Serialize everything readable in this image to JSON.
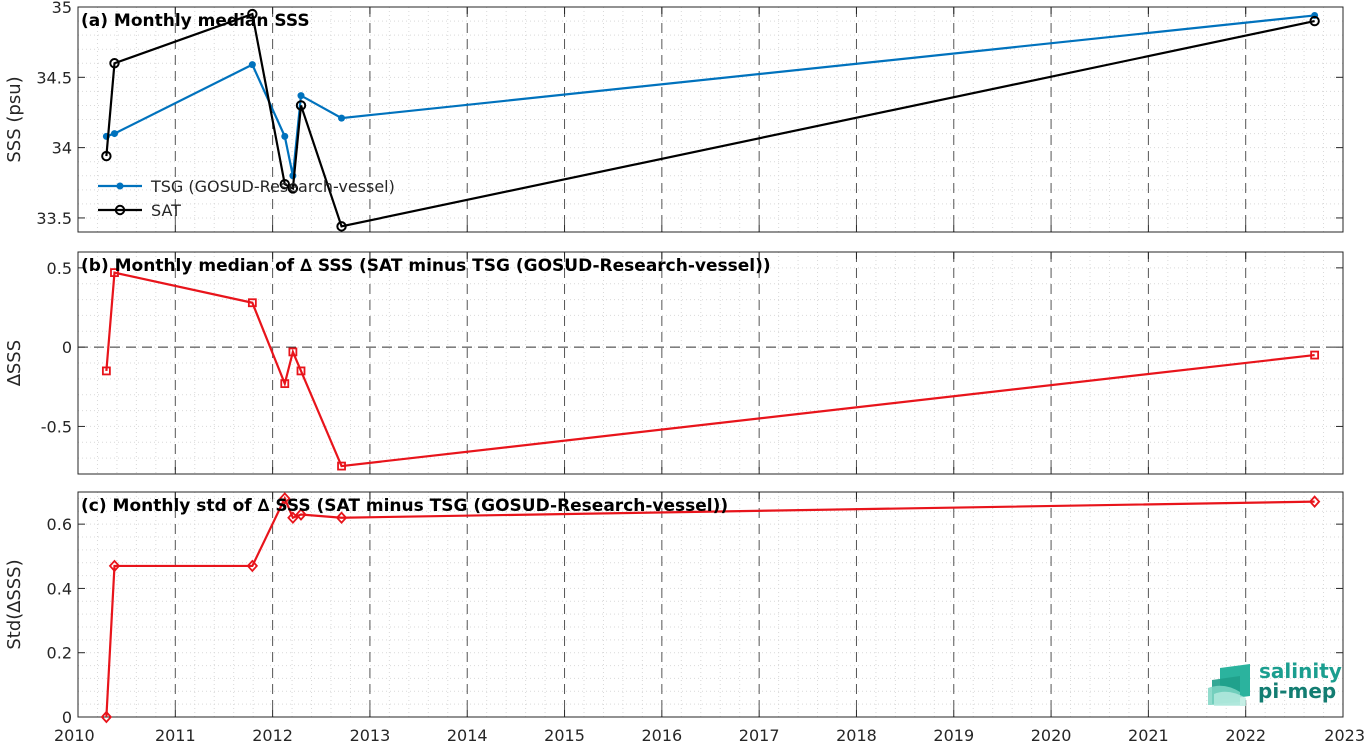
{
  "chart_data": [
    {
      "type": "line",
      "title": "(a) Monthly median SSS",
      "xlabel": "",
      "ylabel": "SSS (psu)",
      "xlim": [
        "2010",
        "2023"
      ],
      "ylim": [
        33.4,
        35
      ],
      "yticks": [
        "33.5",
        "34",
        "34.5",
        "35"
      ],
      "grid": true,
      "legend_position": "bottom-left",
      "series": [
        {
          "name": "TSG (GOSUD-Research-vessel)",
          "color": "#0072bd",
          "marker": "dot",
          "x": [
            "2010-04",
            "2010-05",
            "2011-10",
            "2012-02",
            "2012-03",
            "2012-04",
            "2012-09",
            "2022-09"
          ],
          "y": [
            34.08,
            34.1,
            34.59,
            34.08,
            33.8,
            34.37,
            34.21,
            34.94
          ]
        },
        {
          "name": "SAT",
          "color": "#000000",
          "marker": "circle",
          "x": [
            "2010-04",
            "2010-05",
            "2011-10",
            "2012-02",
            "2012-03",
            "2012-04",
            "2012-09",
            "2022-09"
          ],
          "y": [
            33.94,
            34.6,
            34.95,
            33.74,
            33.71,
            34.3,
            33.44,
            34.9
          ]
        }
      ]
    },
    {
      "type": "line",
      "title": "(b) Monthly median of ∆ SSS (SAT minus TSG (GOSUD-Research-vessel))",
      "xlabel": "",
      "ylabel": "∆SSS",
      "xlim": [
        "2010",
        "2023"
      ],
      "ylim": [
        -0.8,
        0.6
      ],
      "yticks": [
        "-0.5",
        "0",
        "0.5"
      ],
      "grid": true,
      "zero_line": true,
      "series": [
        {
          "color": "#e8141b",
          "marker": "square",
          "x": [
            "2010-04",
            "2010-05",
            "2011-10",
            "2012-02",
            "2012-03",
            "2012-04",
            "2012-09",
            "2022-09"
          ],
          "y": [
            -0.15,
            0.47,
            0.28,
            -0.23,
            -0.03,
            -0.15,
            -0.75,
            -0.05
          ]
        }
      ]
    },
    {
      "type": "line",
      "title": "(c) Monthly std of ∆ SSS (SAT minus TSG (GOSUD-Research-vessel))",
      "xlabel": "",
      "ylabel": "Std(∆SSS)",
      "xlim": [
        "2010",
        "2023"
      ],
      "ylim": [
        0,
        0.7
      ],
      "yticks": [
        "0",
        "0.2",
        "0.4",
        "0.6"
      ],
      "xticks": [
        "2010",
        "2011",
        "2012",
        "2013",
        "2014",
        "2015",
        "2016",
        "2017",
        "2018",
        "2019",
        "2020",
        "2021",
        "2022",
        "2023"
      ],
      "grid": true,
      "series": [
        {
          "color": "#e8141b",
          "marker": "diamond",
          "x": [
            "2010-04",
            "2010-05",
            "2011-10",
            "2012-02",
            "2012-03",
            "2012-04",
            "2012-09",
            "2022-09"
          ],
          "y": [
            0.0,
            0.47,
            0.47,
            0.68,
            0.62,
            0.63,
            0.62,
            0.67
          ]
        }
      ]
    }
  ],
  "logo": {
    "line1": "salinity",
    "line2": "pi-mep",
    "color": "#1b9e8f"
  }
}
